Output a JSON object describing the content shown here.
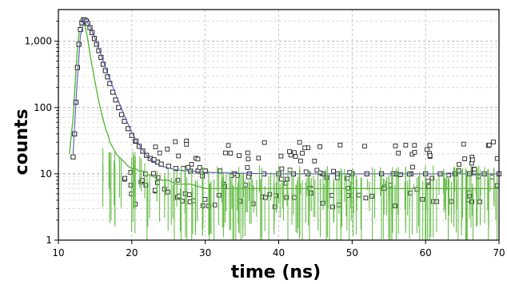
{
  "chart_data": {
    "type": "scatter",
    "title": "",
    "xlabel": "time (ns)",
    "ylabel": "counts",
    "xlim": [
      10,
      70
    ],
    "ylim": [
      1,
      3000
    ],
    "y_scale": "log",
    "grid": true,
    "legend": "none",
    "x_ticks": [
      10,
      20,
      30,
      40,
      50,
      60,
      70
    ],
    "x_tick_labels": [
      "10",
      "20",
      "30",
      "40",
      "50",
      "60",
      "70"
    ],
    "y_ticks": [
      1,
      10,
      100,
      1000
    ],
    "y_tick_labels": [
      "1",
      "10",
      "100",
      "1,000"
    ],
    "series": [
      {
        "style": "line",
        "color": "#5cb83c",
        "x": [
          11.5,
          12.0,
          12.3,
          12.6,
          12.9,
          13.2,
          13.5,
          13.8,
          14.1,
          14.4,
          14.7,
          15.0,
          15.3,
          15.6,
          15.9,
          16.2,
          16.5,
          16.8,
          17.0,
          17.5,
          18.0,
          18.5,
          19.0,
          19.5,
          20.0,
          20.5,
          21.0,
          21.5,
          22.0,
          23.0,
          24.0,
          25.0,
          26.0,
          28.0,
          30.0,
          35.0,
          40.0,
          45.0,
          50.0,
          55.0,
          60.0,
          65.0,
          70.0
        ],
        "y": [
          20,
          70,
          250,
          800,
          1600,
          2100,
          1900,
          1400,
          900,
          560,
          360,
          240,
          160,
          110,
          80,
          60,
          45,
          38,
          30,
          24,
          19,
          17,
          15,
          13,
          12,
          12,
          11,
          11,
          10,
          9,
          8,
          8,
          7,
          7,
          6,
          6,
          6,
          6,
          6,
          6,
          6,
          6,
          6
        ]
      },
      {
        "style": "markers",
        "color": "#222222",
        "x": [
          12.0,
          12.2,
          12.4,
          12.6,
          12.8,
          13.0,
          13.2,
          13.4,
          13.6,
          13.8,
          14.0,
          14.3,
          14.6,
          14.9,
          15.2,
          15.5,
          15.8,
          16.1,
          16.4,
          16.7,
          17.0,
          17.4,
          17.8,
          18.2,
          18.6,
          19.0,
          19.5,
          20.0,
          20.5,
          21.0,
          21.5,
          22.0,
          22.5,
          23.0,
          23.5,
          24.0,
          25.0,
          26.0,
          27.0,
          28.0,
          29.0,
          30.0,
          32.0,
          34.0,
          36.0,
          38.0,
          40.0,
          42.0,
          44.0,
          46.0,
          48.0,
          50.0,
          52.0,
          54.0,
          56.0,
          58.0,
          60.0,
          62.0,
          64.0,
          66.0,
          68.0,
          70.0
        ],
        "y": [
          18,
          40,
          120,
          400,
          900,
          1500,
          1900,
          2100,
          2100,
          2000,
          1850,
          1600,
          1350,
          1100,
          900,
          720,
          570,
          450,
          360,
          290,
          230,
          170,
          130,
          100,
          78,
          62,
          48,
          38,
          31,
          26,
          22,
          19,
          17,
          16,
          15,
          14,
          13,
          12,
          12,
          11,
          11,
          11,
          11,
          10,
          10,
          10,
          10,
          10,
          10,
          10,
          10,
          10,
          10,
          10,
          10,
          10,
          10,
          10,
          10,
          10,
          10,
          10
        ]
      },
      {
        "style": "line",
        "color": "#5a5ab4",
        "x": [
          12.0,
          12.5,
          13.0,
          13.5,
          14.0,
          14.5,
          15.0,
          15.5,
          16.0,
          16.5,
          17.0,
          18.0,
          19.0,
          20.0,
          21.0,
          22.0,
          23.0,
          24.0,
          26.0,
          28.0,
          30.0,
          35.0,
          40.0,
          50.0,
          60.0,
          70.0
        ],
        "y": [
          20,
          200,
          1200,
          2100,
          1900,
          1500,
          1100,
          780,
          540,
          380,
          270,
          140,
          75,
          42,
          27,
          19,
          15,
          13,
          11.5,
          11,
          10.5,
          10.2,
          10,
          10,
          10,
          10
        ]
      }
    ]
  }
}
